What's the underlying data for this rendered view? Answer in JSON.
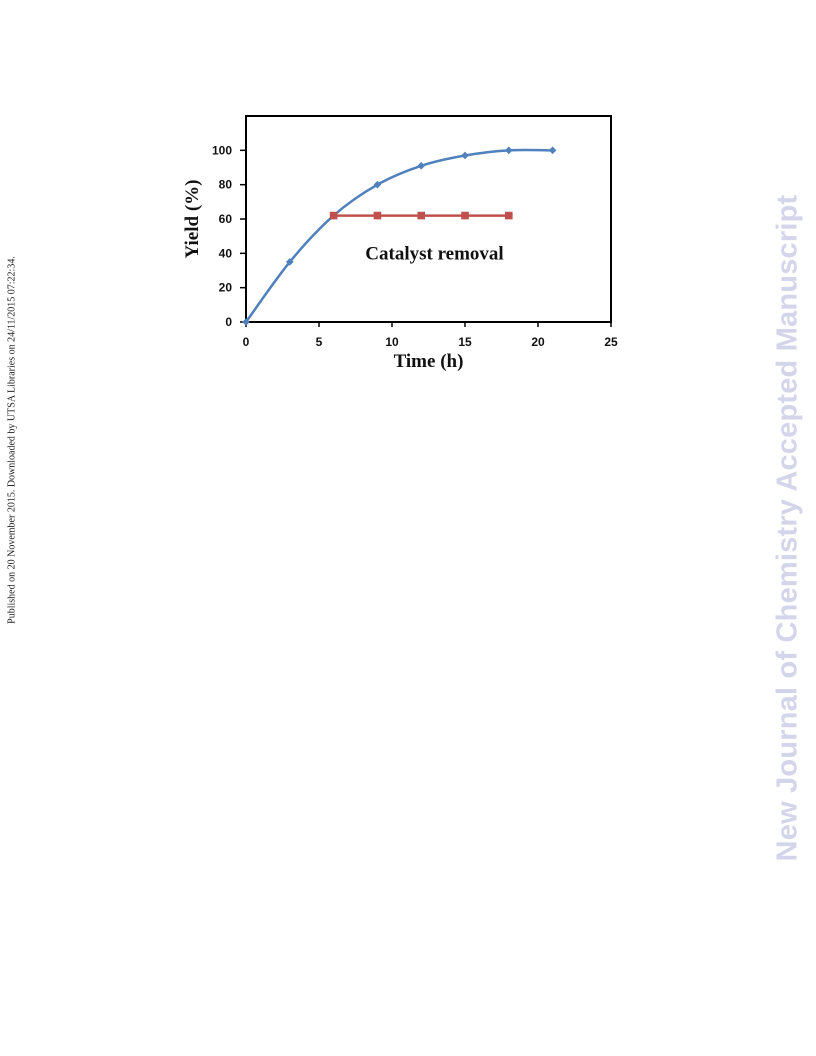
{
  "side_note": "Published on 20 November 2015. Downloaded by UTSA Libraries on 24/11/2015 07:22:34.",
  "watermark": "New Journal of Chemistry Accepted Manuscript",
  "colors": {
    "series_blue": "#4f81bd",
    "series_red": "#c0504d",
    "watermark": "#d4d4ea"
  },
  "chart_data": {
    "type": "line",
    "title": "",
    "xlabel": "Time (h)",
    "ylabel": "Yield (%)",
    "xlim": [
      0,
      25
    ],
    "ylim": [
      0,
      120
    ],
    "x_ticks": [
      0,
      5,
      10,
      15,
      20,
      25
    ],
    "y_ticks": [
      0,
      20,
      40,
      60,
      80,
      100
    ],
    "grid": false,
    "legend": "none",
    "annotations": [
      {
        "text": "Catalyst removal",
        "x": 12.5,
        "y": 40
      }
    ],
    "series": [
      {
        "color": "#4f81bd",
        "marker": "diamond",
        "smooth": true,
        "x": [
          0,
          3,
          6,
          9,
          12,
          15,
          18,
          21
        ],
        "y": [
          0,
          35,
          62,
          80,
          91,
          97,
          100,
          100
        ]
      },
      {
        "color": "#c0504d",
        "marker": "square",
        "smooth": false,
        "x": [
          6,
          9,
          12,
          15,
          18
        ],
        "y": [
          62,
          62,
          62,
          62,
          62
        ]
      }
    ]
  }
}
